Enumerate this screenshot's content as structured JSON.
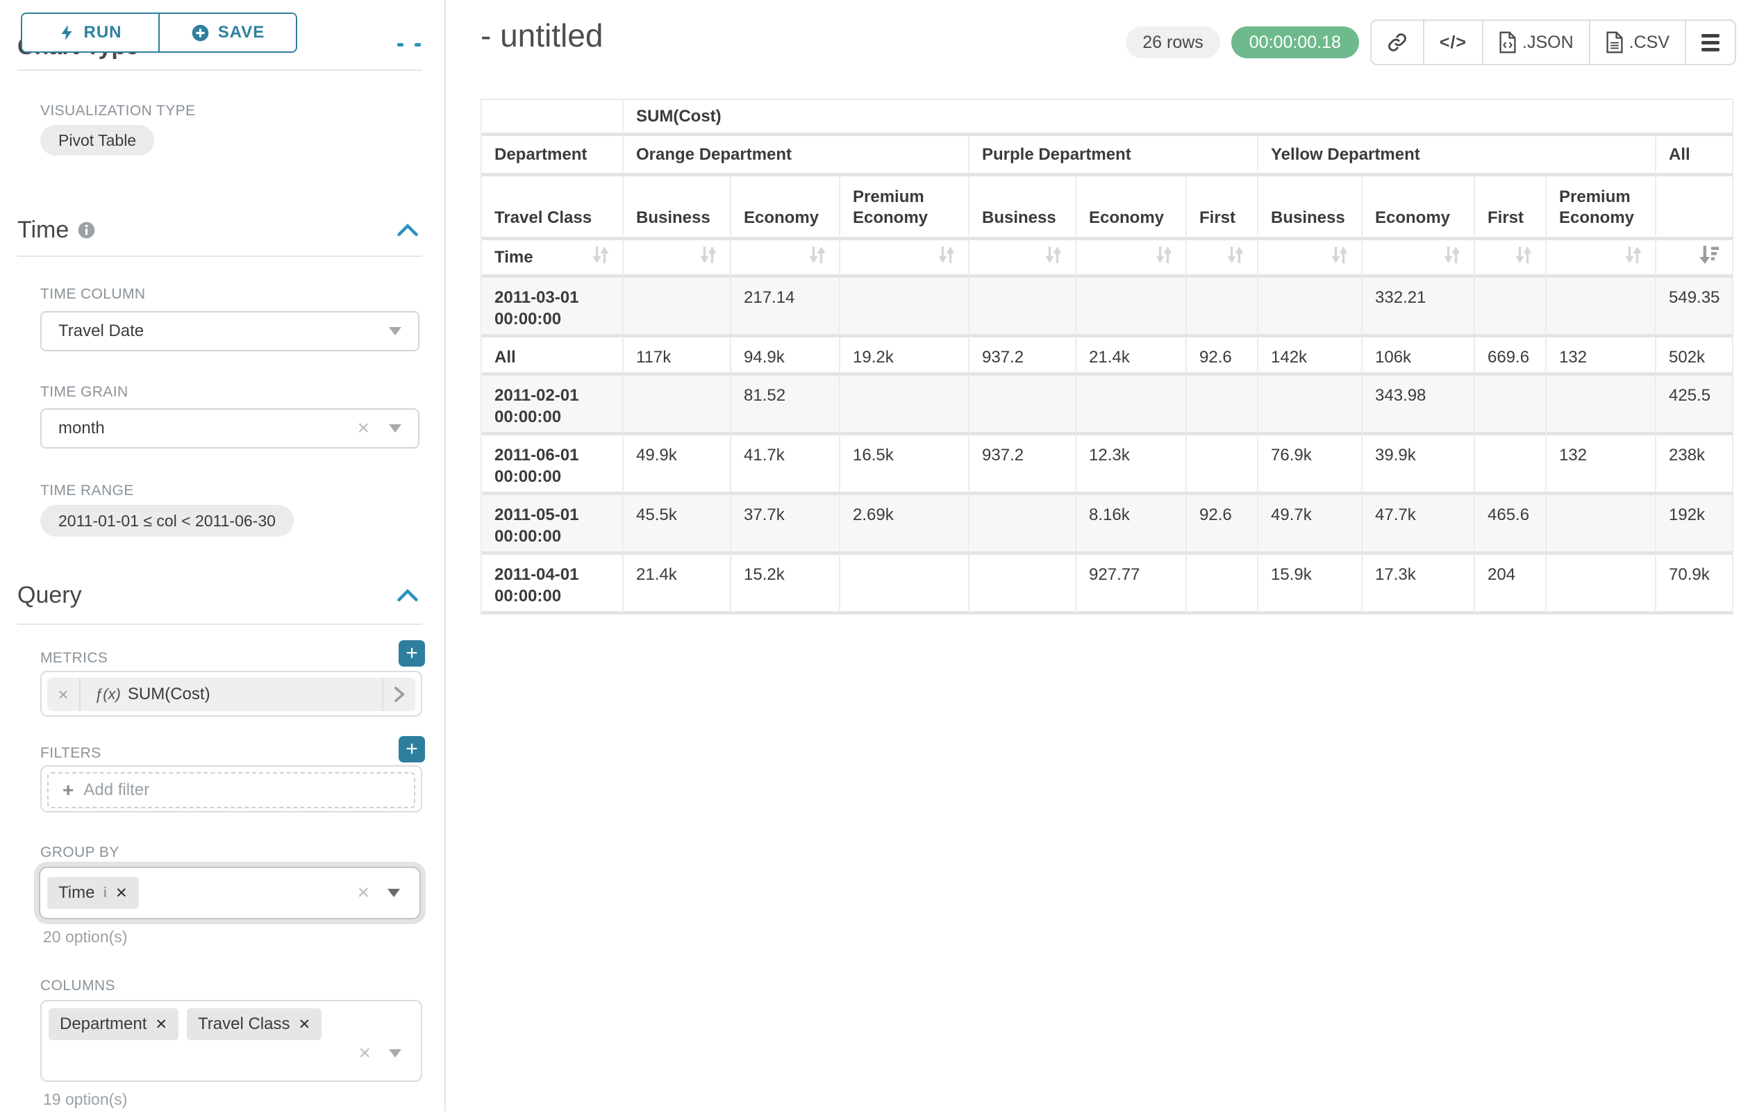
{
  "colors": {
    "accent": "#2E7F9E",
    "success": "#6FBA8C"
  },
  "sidebar": {
    "run_label": "RUN",
    "save_label": "SAVE",
    "chart_type_heading": "Chart Type",
    "viz_type": {
      "label": "VISUALIZATION TYPE",
      "value": "Pivot Table"
    },
    "time": {
      "heading": "Time",
      "column_label": "TIME COLUMN",
      "column_value": "Travel Date",
      "grain_label": "TIME GRAIN",
      "grain_value": "month",
      "range_label": "TIME RANGE",
      "range_value": "2011-01-01 ≤ col < 2011-06-30"
    },
    "query": {
      "heading": "Query",
      "metrics_label": "METRICS",
      "metric_fx": "ƒ(x)",
      "metric_value": "SUM(Cost)",
      "filters_label": "FILTERS",
      "add_filter_label": "Add filter",
      "group_by_label": "GROUP BY",
      "group_by_values": [
        "Time"
      ],
      "group_by_hint": "20 option(s)",
      "columns_label": "COLUMNS",
      "columns_values": [
        "Department",
        "Travel Class"
      ],
      "columns_hint": "19 option(s)"
    }
  },
  "header": {
    "title": "- untitled",
    "row_count": "26 rows",
    "timer": "00:00:00.18",
    "code_glyph": "</>",
    "json_label": ".JSON",
    "csv_label": ".CSV"
  },
  "chart_data": {
    "type": "table",
    "metric": "SUM(Cost)",
    "corner_labels": {
      "department": "Department",
      "travel_class": "Travel Class",
      "time": "Time"
    },
    "column_groups": [
      {
        "label": "Orange Department",
        "children": [
          "Business",
          "Economy",
          "Premium Economy"
        ]
      },
      {
        "label": "Purple Department",
        "children": [
          "Business",
          "Economy",
          "First"
        ]
      },
      {
        "label": "Yellow Department",
        "children": [
          "Business",
          "Economy",
          "First",
          "Premium Economy"
        ]
      },
      {
        "label": "All",
        "children": [
          ""
        ]
      }
    ],
    "rows": [
      {
        "label": "2011-03-01 00:00:00",
        "values": [
          "",
          "217.14",
          "",
          "",
          "",
          "",
          "",
          "332.21",
          "",
          "",
          "549.35"
        ]
      },
      {
        "label": "All",
        "values": [
          "117k",
          "94.9k",
          "19.2k",
          "937.2",
          "21.4k",
          "92.6",
          "142k",
          "106k",
          "669.6",
          "132",
          "502k"
        ]
      },
      {
        "label": "2011-02-01 00:00:00",
        "values": [
          "",
          "81.52",
          "",
          "",
          "",
          "",
          "",
          "343.98",
          "",
          "",
          "425.5"
        ]
      },
      {
        "label": "2011-06-01 00:00:00",
        "values": [
          "49.9k",
          "41.7k",
          "16.5k",
          "937.2",
          "12.3k",
          "",
          "76.9k",
          "39.9k",
          "",
          "132",
          "238k"
        ]
      },
      {
        "label": "2011-05-01 00:00:00",
        "values": [
          "45.5k",
          "37.7k",
          "2.69k",
          "",
          "8.16k",
          "92.6",
          "49.7k",
          "47.7k",
          "465.6",
          "",
          "192k"
        ]
      },
      {
        "label": "2011-04-01 00:00:00",
        "values": [
          "21.4k",
          "15.2k",
          "",
          "",
          "927.77",
          "",
          "15.9k",
          "17.3k",
          "204",
          "",
          "70.9k"
        ]
      }
    ]
  }
}
